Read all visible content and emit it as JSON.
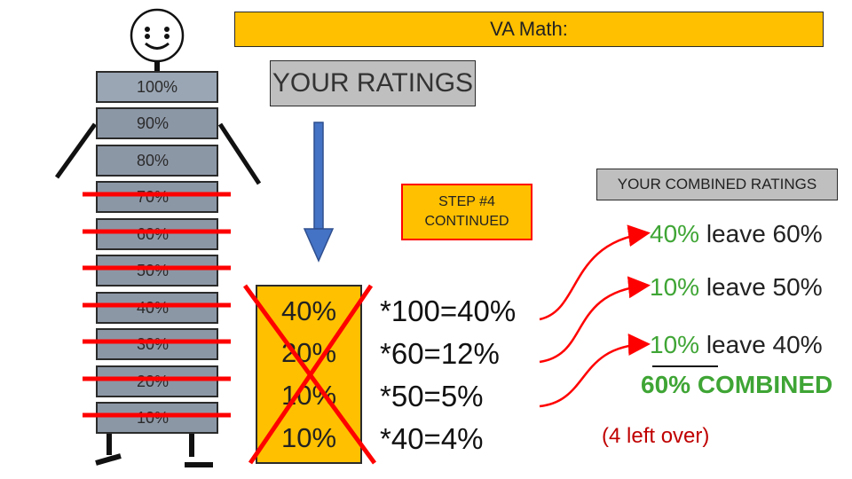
{
  "title": "VA Math:",
  "ratings_label": "YOUR RATINGS",
  "ladder": [
    "100%",
    "90%",
    "80%",
    "70%",
    "60%",
    "50%",
    "40%",
    "30%",
    "20%",
    "10%"
  ],
  "step": {
    "line1": "STEP #4",
    "line2": "CONTINUED"
  },
  "ratings_values": [
    "40%",
    "20%",
    "10%",
    "10%"
  ],
  "calculations": [
    "*100=40%",
    "*60=12%",
    "*50=5%",
    "*40=4%"
  ],
  "combined_label": "YOUR COMBINED RATINGS",
  "results": [
    {
      "pct": "40%",
      "rest": "leave 60%"
    },
    {
      "pct": "10%",
      "rest": "leave 50%"
    },
    {
      "pct": "10%",
      "rest": "leave 40%"
    }
  ],
  "combined_total": "60% COMBINED",
  "leftover": "(4 left over)",
  "colors": {
    "gold": "#ffc000",
    "gray_box": "#bfbfbf",
    "ladder": "#8c97a6",
    "red": "#ff0000",
    "green": "#3fa535",
    "arrow_blue": "#4472c4"
  },
  "icons": [
    "smiley-face-icon",
    "down-arrow-icon",
    "red-curved-arrow-icon"
  ]
}
